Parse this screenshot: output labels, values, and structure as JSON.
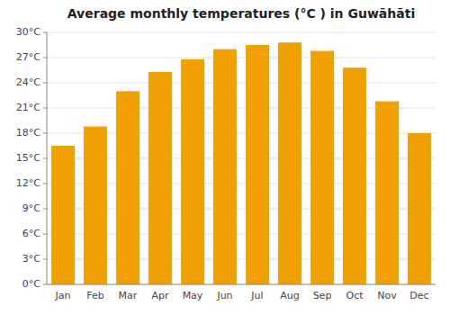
{
  "chart_data": {
    "type": "bar",
    "title": "Average monthly temperatures (°C ) in Guwāhāti",
    "categories": [
      "Jan",
      "Feb",
      "Mar",
      "Apr",
      "May",
      "Jun",
      "Jul",
      "Aug",
      "Sep",
      "Oct",
      "Nov",
      "Dec"
    ],
    "values": [
      16.5,
      18.8,
      23.0,
      25.3,
      26.8,
      28.0,
      28.5,
      28.8,
      27.8,
      25.8,
      21.8,
      18.0
    ],
    "color": "#F0A000",
    "ylim": [
      0,
      30
    ],
    "yticks": [
      {
        "value": 0,
        "label": "0°C"
      },
      {
        "value": 3,
        "label": "3°C"
      },
      {
        "value": 6,
        "label": "6°C"
      },
      {
        "value": 9,
        "label": "9°C"
      },
      {
        "value": 12,
        "label": "12°C"
      },
      {
        "value": 15,
        "label": "15°C"
      },
      {
        "value": 18,
        "label": "18°C"
      },
      {
        "value": 21,
        "label": "21°C"
      },
      {
        "value": 24,
        "label": "24°C"
      },
      {
        "value": 27,
        "label": "27°C"
      },
      {
        "value": 30,
        "label": "30°C"
      }
    ],
    "grid": true
  }
}
